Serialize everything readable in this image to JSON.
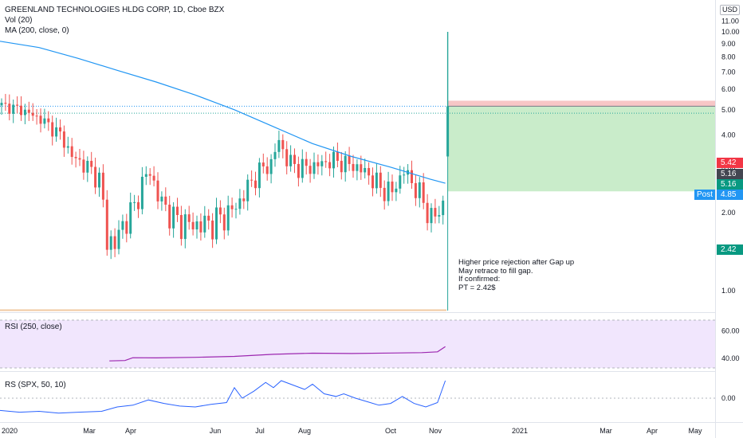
{
  "header": {
    "title": "GREENLAND TECHNOLOGIES HLDG CORP, 1D, Cboe BZX",
    "volume_label": "Vol (20)",
    "ma_label": "MA (200, close, 0)",
    "currency": "USD"
  },
  "annotation": {
    "lines": [
      "Higher price rejection after Gap up",
      "May retrace to fill gap.",
      "If confirmed:",
      "PT = 2.42$"
    ]
  },
  "price_tags": {
    "stop": "5.42",
    "entry": "5.16",
    "last": "5.16",
    "post_label": "Post",
    "post_value": "4.85",
    "target": "2.42"
  },
  "colors": {
    "up": "#26a69a",
    "down": "#ef5350",
    "ma": "#2196f3",
    "rsi": "#9c27b0",
    "rs": "#2962ff",
    "stop_zone": "#f7c6c6",
    "target_zone": "#c9ecca"
  },
  "chart_data": [
    {
      "type": "line",
      "name": "price",
      "x_ticks": [
        "2020",
        "Mar",
        "Apr",
        "Jun",
        "Jul",
        "Aug",
        "Oct",
        "Nov",
        "2021",
        "Mar",
        "Apr",
        "May"
      ],
      "y_ticks": [
        1.0,
        2.0,
        3.0,
        4.0,
        5.0,
        6.0,
        7.0,
        8.0,
        9.0,
        10.0,
        11.0
      ],
      "ylim": [
        0.3,
        11.0
      ],
      "close_path": [
        [
          0,
          5.2
        ],
        [
          5,
          5.0
        ],
        [
          10,
          4.6
        ],
        [
          15,
          4.0
        ],
        [
          18,
          3.3
        ],
        [
          22,
          3.0
        ],
        [
          25,
          2.7
        ],
        [
          27,
          1.6
        ],
        [
          29,
          1.5
        ],
        [
          31,
          1.8
        ],
        [
          34,
          2.1
        ],
        [
          36,
          2.6
        ],
        [
          38,
          2.9
        ],
        [
          40,
          2.3
        ],
        [
          44,
          1.9
        ],
        [
          48,
          1.8
        ],
        [
          52,
          1.8
        ],
        [
          56,
          1.9
        ],
        [
          60,
          2.1
        ],
        [
          63,
          2.5
        ],
        [
          66,
          2.9
        ],
        [
          69,
          3.1
        ],
        [
          71,
          3.8
        ],
        [
          73,
          3.2
        ],
        [
          76,
          3.0
        ],
        [
          79,
          3.0
        ],
        [
          82,
          3.1
        ],
        [
          85,
          3.2
        ],
        [
          88,
          3.1
        ],
        [
          91,
          3.0
        ],
        [
          94,
          2.8
        ],
        [
          97,
          2.5
        ],
        [
          100,
          2.4
        ],
        [
          103,
          2.9
        ],
        [
          106,
          2.5
        ],
        [
          108,
          2.2
        ],
        [
          110,
          1.9
        ],
        [
          112,
          2.0
        ],
        [
          113,
          2.2
        ],
        [
          114,
          2.3
        ]
      ],
      "spike": {
        "open": 3.3,
        "high": 10.0,
        "close": 5.16
      },
      "ma_path": [
        [
          0,
          9.2
        ],
        [
          10,
          8.7
        ],
        [
          20,
          7.9
        ],
        [
          30,
          7.1
        ],
        [
          40,
          6.4
        ],
        [
          50,
          5.7
        ],
        [
          60,
          5.0
        ],
        [
          70,
          4.3
        ],
        [
          80,
          3.7
        ],
        [
          90,
          3.3
        ],
        [
          100,
          3.0
        ],
        [
          110,
          2.7
        ],
        [
          114,
          2.6
        ]
      ],
      "levels": {
        "stop": 5.42,
        "entry": 5.16,
        "target": 2.42,
        "post": 4.85
      }
    },
    {
      "type": "line",
      "name": "RSI (250, close)",
      "y_ticks": [
        40.0,
        60.0
      ],
      "ylim": [
        32,
        70
      ],
      "values": [
        [
          28,
          38.2
        ],
        [
          32,
          38.5
        ],
        [
          34,
          40.5
        ],
        [
          40,
          40.4
        ],
        [
          50,
          40.8
        ],
        [
          60,
          41.5
        ],
        [
          70,
          43.0
        ],
        [
          80,
          43.8
        ],
        [
          90,
          43.6
        ],
        [
          100,
          43.9
        ],
        [
          108,
          44.2
        ],
        [
          112,
          44.8
        ],
        [
          114,
          48.5
        ]
      ]
    },
    {
      "type": "line",
      "name": "RS (SPX, 50, 10)",
      "y_ticks": [
        0.0
      ],
      "ylim": [
        -0.35,
        0.25
      ],
      "values": [
        [
          0,
          -0.14
        ],
        [
          5,
          -0.16
        ],
        [
          10,
          -0.15
        ],
        [
          15,
          -0.17
        ],
        [
          20,
          -0.16
        ],
        [
          26,
          -0.15
        ],
        [
          30,
          -0.1
        ],
        [
          34,
          -0.08
        ],
        [
          38,
          -0.02
        ],
        [
          42,
          -0.06
        ],
        [
          46,
          -0.09
        ],
        [
          50,
          -0.1
        ],
        [
          54,
          -0.07
        ],
        [
          58,
          -0.05
        ],
        [
          60,
          0.12
        ],
        [
          62,
          0.0
        ],
        [
          65,
          0.08
        ],
        [
          68,
          0.18
        ],
        [
          70,
          0.12
        ],
        [
          72,
          0.2
        ],
        [
          75,
          0.15
        ],
        [
          78,
          0.1
        ],
        [
          80,
          0.16
        ],
        [
          83,
          0.05
        ],
        [
          86,
          0.02
        ],
        [
          88,
          0.05
        ],
        [
          91,
          0.0
        ],
        [
          94,
          -0.04
        ],
        [
          97,
          -0.08
        ],
        [
          100,
          -0.06
        ],
        [
          103,
          0.02
        ],
        [
          106,
          -0.06
        ],
        [
          109,
          -0.1
        ],
        [
          112,
          -0.05
        ],
        [
          114,
          0.2
        ]
      ]
    }
  ]
}
